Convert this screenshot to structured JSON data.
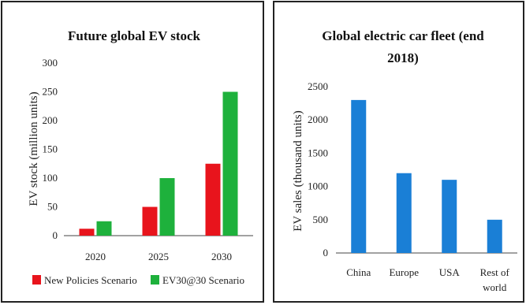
{
  "charts": [
    {
      "type": "bar",
      "title": "Future global EV stock",
      "ylabel": "EV stock (million units)",
      "ylim": [
        0,
        300
      ],
      "yticks": [
        0,
        50,
        100,
        150,
        200,
        250,
        300
      ],
      "categories": [
        "2020",
        "2025",
        "2030"
      ],
      "series": [
        {
          "name": "New Policies Scenario",
          "color": "#e8141c",
          "values": [
            12,
            50,
            125
          ]
        },
        {
          "name": "EV30@30 Scenario",
          "color": "#1eb13c",
          "values": [
            25,
            100,
            250
          ]
        }
      ],
      "grid": false,
      "legend_position": "bottom"
    },
    {
      "type": "bar",
      "title_lines": [
        "Global electric car fleet (end",
        "2018)"
      ],
      "ylabel": "EV sales (thousand units)",
      "ylim": [
        0,
        2500
      ],
      "yticks": [
        0,
        500,
        1000,
        1500,
        2000,
        2500
      ],
      "categories": [
        [
          "China"
        ],
        [
          "Europe"
        ],
        [
          "USA"
        ],
        [
          "Rest of",
          "world"
        ]
      ],
      "series": [
        {
          "color": "#1a7fd6",
          "values": [
            2300,
            1200,
            1100,
            500
          ]
        }
      ],
      "grid": false
    }
  ]
}
